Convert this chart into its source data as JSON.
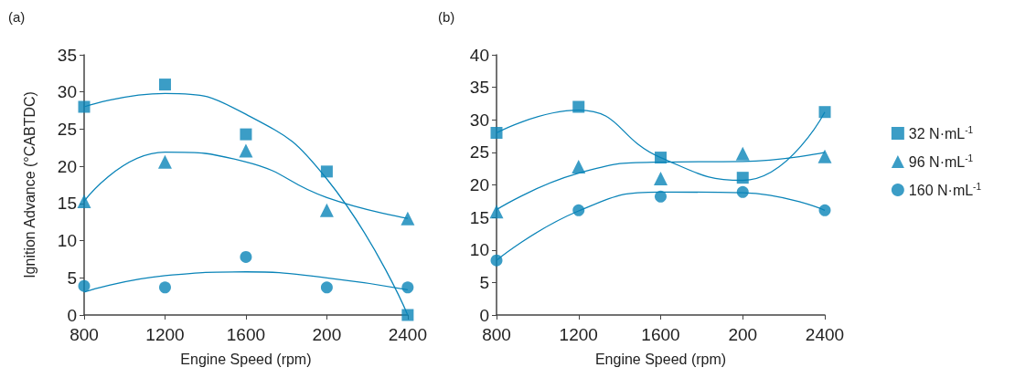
{
  "chart_data": [
    {
      "type": "scatter",
      "title": "(a)",
      "xlabel": "Engine Speed (rpm)",
      "ylabel": "Ignition Advance (°CABTDC)",
      "categories": [
        "800",
        "1200",
        "1600",
        "200",
        "2400"
      ],
      "ylim": [
        0,
        35
      ],
      "yticks": [
        0,
        5,
        10,
        15,
        20,
        25,
        30,
        35
      ],
      "grid": false,
      "legend": false,
      "series": [
        {
          "type": "scatter",
          "marker": "square",
          "color": "#0a84b8",
          "values": [
            28,
            31,
            24.3,
            19.3,
            0
          ]
        },
        {
          "type": "scatter",
          "marker": "triangle",
          "color": "#0a84b8",
          "values": [
            15.3,
            20.6,
            22.1,
            14.1,
            13
          ]
        },
        {
          "type": "scatter",
          "marker": "circle",
          "color": "#0a84b8",
          "values": [
            3.9,
            3.7,
            7.8,
            3.7,
            3.7
          ]
        },
        {
          "type": "line",
          "marker": "none",
          "color": "#0a84b8",
          "values": [
            28,
            29.8,
            27,
            18.3,
            0
          ]
        },
        {
          "type": "line",
          "marker": "none",
          "color": "#0a84b8",
          "values": [
            15.3,
            21.9,
            20.6,
            15.8,
            13
          ]
        },
        {
          "type": "line",
          "marker": "none",
          "color": "#0a84b8",
          "values": [
            3.1,
            5.3,
            5.8,
            5,
            3.4
          ]
        }
      ]
    },
    {
      "type": "scatter",
      "title": "(b)",
      "xlabel": "Engine Speed (rpm)",
      "categories": [
        "800",
        "1200",
        "1600",
        "200",
        "2400"
      ],
      "ylim": [
        0,
        40
      ],
      "yticks": [
        0,
        5,
        10,
        15,
        20,
        25,
        30,
        35,
        40
      ],
      "grid": false,
      "legend": "right",
      "series": [
        {
          "type": "scatter",
          "name": "32 N·mL$^{-1}$",
          "marker": "square",
          "color": "#0a84b8",
          "values": [
            28,
            32,
            24.2,
            21.1,
            31.2
          ]
        },
        {
          "type": "scatter",
          "name": "96 N·mL$^{-1}$",
          "marker": "triangle",
          "color": "#0a84b8",
          "values": [
            15.9,
            22.8,
            21,
            24.8,
            24.4
          ]
        },
        {
          "type": "scatter",
          "name": "160 N·mL$^{-1}$",
          "marker": "circle",
          "color": "#0a84b8",
          "values": [
            8.4,
            16.1,
            18.2,
            18.9,
            16.1
          ]
        },
        {
          "type": "line",
          "marker": "none",
          "color": "#0a84b8",
          "values": [
            28,
            31.5,
            24.2,
            20.7,
            31.2
          ]
        },
        {
          "type": "line",
          "marker": "none",
          "color": "#0a84b8",
          "values": [
            16.2,
            21.8,
            23.5,
            23.6,
            25
          ]
        },
        {
          "type": "line",
          "marker": "none",
          "color": "#0a84b8",
          "values": [
            8.4,
            16,
            18.9,
            18.8,
            16.1
          ]
        }
      ]
    }
  ]
}
